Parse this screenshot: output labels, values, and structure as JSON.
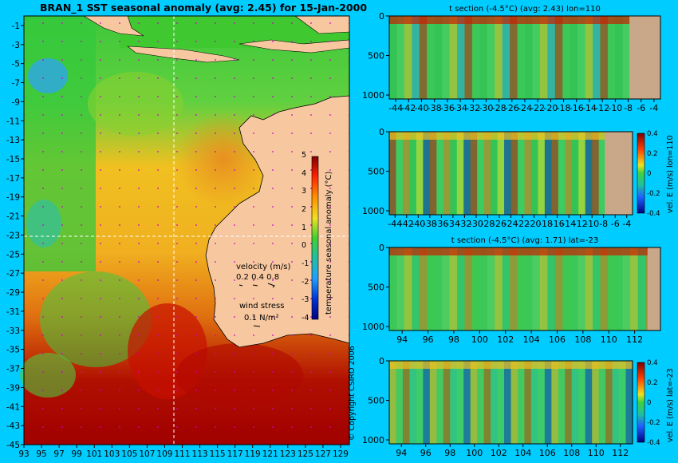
{
  "colors": {
    "background": "#00ccff",
    "land": "#f7c8a0",
    "bathy": "#c8a888",
    "frame": "#000000"
  },
  "title": "BRAN_1 SST seasonal anomaly (avg: 2.45) for 15-Jan-2000",
  "copyright": "© Copyright CSIRO 2006",
  "map": {
    "xticks": [
      "93",
      "95",
      "97",
      "99",
      "101",
      "103",
      "105",
      "107",
      "109",
      "111",
      "113",
      "115",
      "117",
      "119",
      "121",
      "123",
      "125",
      "127",
      "129"
    ],
    "yticks": [
      "-1",
      "-3",
      "-5",
      "-7",
      "-9",
      "-11",
      "-13",
      "-15",
      "-17",
      "-19",
      "-21",
      "-23",
      "-25",
      "-27",
      "-29",
      "-31",
      "-33",
      "-35",
      "-37",
      "-39",
      "-41",
      "-43",
      "-45"
    ],
    "colorbar": {
      "label": "temperature seasonal anomaly (°C)",
      "ticks": [
        "5",
        "4",
        "3",
        "2",
        "1",
        "0",
        "-1",
        "-2",
        "-3",
        "-4"
      ]
    },
    "velocity_legend": {
      "title": "velocity (m/s)",
      "values": "0.2 0.4 0.8",
      "wind_title": "wind stress",
      "wind_value": "0.1 N/m²"
    }
  },
  "panels": [
    {
      "title": "t section (-4.5°C) (avg: 2.43) lon=110",
      "xticks": [
        "-44",
        "-42",
        "-40",
        "-38",
        "-36",
        "-34",
        "-32",
        "-30",
        "-28",
        "-26",
        "-24",
        "-22",
        "-20",
        "-18",
        "-16",
        "-14",
        "-12",
        "-10",
        "-8",
        "-6",
        "-4"
      ],
      "yticks": [
        "0",
        "500",
        "1000"
      ],
      "colorbar": null
    },
    {
      "title": "",
      "xticks": [
        "-44",
        "-42",
        "-40",
        "-38",
        "-36",
        "-34",
        "-32",
        "-30",
        "-28",
        "-26",
        "-24",
        "-22",
        "-20",
        "-18",
        "-16",
        "-14",
        "-12",
        "-10",
        "-8",
        "-6",
        "-4"
      ],
      "yticks": [
        "0",
        "500",
        "1000"
      ],
      "colorbar": {
        "label": "vel. E (m/s) lon=110",
        "ticks": [
          "0.4",
          "0.2",
          "0",
          "-0.2",
          "-0.4"
        ]
      }
    },
    {
      "title": "t section (-4.5°C) (avg: 1.71) lat=-23",
      "xticks": [
        "94",
        "96",
        "98",
        "100",
        "102",
        "104",
        "106",
        "108",
        "110",
        "112"
      ],
      "yticks": [
        "0",
        "500",
        "1000"
      ],
      "colorbar": null
    },
    {
      "title": "",
      "xticks": [
        "94",
        "96",
        "98",
        "100",
        "102",
        "104",
        "106",
        "108",
        "110",
        "112"
      ],
      "yticks": [
        "0",
        "500",
        "1000"
      ],
      "colorbar": {
        "label": "vel. E (m/s) lat=-23",
        "ticks": [
          "0.4",
          "0.2",
          "0",
          "-0.2",
          "-0.4"
        ]
      }
    }
  ],
  "chart_data": [
    {
      "type": "heatmap",
      "title": "BRAN_1 SST seasonal anomaly (avg: 2.45) for 15-Jan-2000",
      "xlabel": "",
      "ylabel": "",
      "xlim": [
        93,
        130
      ],
      "ylim": [
        -45,
        0
      ],
      "colorbar_range": [
        -4,
        5
      ],
      "summary": {
        "avg": 2.45
      }
    },
    {
      "type": "heatmap",
      "title": "t section (-4.5°C) (avg: 2.43) lon=110",
      "xlim": [
        -45,
        -3
      ],
      "ylim": [
        1050,
        0
      ]
    },
    {
      "type": "heatmap",
      "title": "",
      "colorbar_label": "vel. E (m/s) lon=110",
      "xlim": [
        -45,
        -3
      ],
      "ylim": [
        1050,
        0
      ],
      "colorbar_range": [
        -0.4,
        0.4
      ]
    },
    {
      "type": "heatmap",
      "title": "t section (-4.5°C) (avg: 1.71) lat=-23",
      "xlim": [
        93,
        114
      ],
      "ylim": [
        1050,
        0
      ]
    },
    {
      "type": "heatmap",
      "title": "",
      "colorbar_label": "vel. E (m/s) lat=-23",
      "xlim": [
        93,
        113
      ],
      "ylim": [
        1050,
        0
      ],
      "colorbar_range": [
        -0.4,
        0.4
      ]
    }
  ]
}
